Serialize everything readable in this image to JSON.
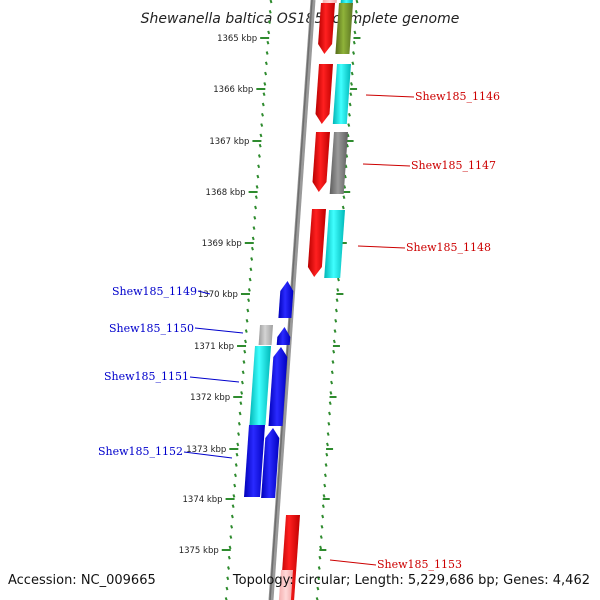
{
  "title": "Shewanella baltica OS185, complete genome",
  "footer": {
    "accession": "Accession: NC_009665",
    "topology": "Topology: circular; Length: 5,229,686 bp; Genes: 4,462"
  },
  "colors": {
    "backbone": "#8c8c8c",
    "tick": "#2e8b2e",
    "forward_label": "#cc0000",
    "reverse_label": "#0000cc",
    "red": "#ee0000",
    "cyan": "#00dede",
    "gray": "#7a7a7a",
    "lightgray": "#b0b0b0",
    "blue": "#0000ee",
    "olive": "#6b8e23"
  },
  "kbp_labels": [
    "1365 kbp",
    "1366 kbp",
    "1367 kbp",
    "1368 kbp",
    "1369 kbp",
    "1370 kbp",
    "1371 kbp",
    "1372 kbp",
    "1373 kbp",
    "1374 kbp",
    "1375 kbp"
  ],
  "gene_labels": [
    {
      "id": "Shew185_1146",
      "strand": "forward"
    },
    {
      "id": "Shew185_1147",
      "strand": "forward"
    },
    {
      "id": "Shew185_1148",
      "strand": "forward"
    },
    {
      "id": "Shew185_1149",
      "strand": "reverse"
    },
    {
      "id": "Shew185_1150",
      "strand": "reverse"
    },
    {
      "id": "Shew185_1151",
      "strand": "reverse"
    },
    {
      "id": "Shew185_1152",
      "strand": "reverse"
    },
    {
      "id": "Shew185_1153",
      "strand": "forward"
    }
  ]
}
